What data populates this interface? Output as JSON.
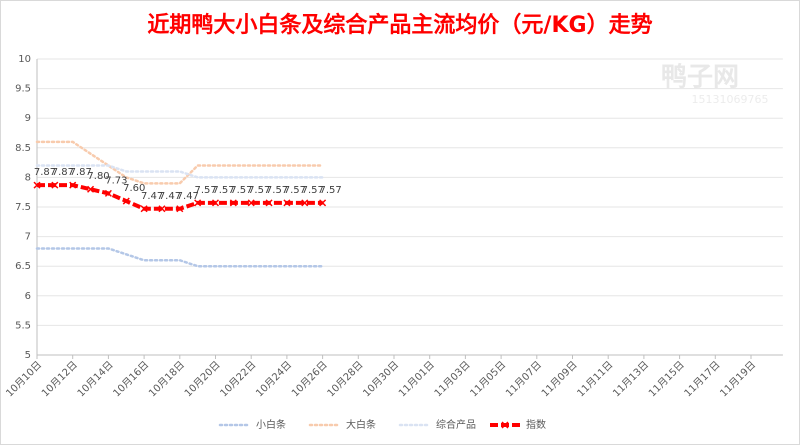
{
  "chart_data": {
    "type": "line",
    "title": "近期鸭大小白条及综合产品主流均价（元/KG）走势",
    "watermark": [
      "鸭子网",
      "15131069765"
    ],
    "categories": [
      "10月10日",
      null,
      "10月12日",
      null,
      "10月14日",
      null,
      "10月16日",
      null,
      "10月18日",
      null,
      "10月20日",
      null,
      "10月22日",
      null,
      "10月24日",
      null,
      "10月26日",
      null,
      "10月28日",
      null,
      "10月30日",
      null,
      "11月01日",
      null,
      "11月03日",
      null,
      "11月05日",
      null,
      "11月07日",
      null,
      "11月09日",
      null,
      "11月11日",
      null,
      "11月13日",
      null,
      "11月15日",
      null,
      "11月17日",
      null,
      "11月19日",
      null
    ],
    "ylim": [
      5,
      10
    ],
    "yticks": [
      5,
      5.5,
      6,
      6.5,
      7,
      7.5,
      8,
      8.5,
      9,
      9.5,
      10
    ],
    "grid": true,
    "legend": "bottom",
    "series": [
      {
        "name": "小白条",
        "color": "#b4c7e7",
        "dash": "dotted",
        "values": [
          6.8,
          6.8,
          6.8,
          6.8,
          6.8,
          6.7,
          6.6,
          6.6,
          6.6,
          6.5,
          6.5,
          6.5,
          6.5,
          6.5,
          6.5,
          6.5,
          6.5,
          null,
          null,
          null,
          null,
          null,
          null,
          null,
          null,
          null,
          null,
          null,
          null,
          null,
          null,
          null,
          null,
          null,
          null,
          null,
          null,
          null,
          null,
          null,
          null,
          null
        ]
      },
      {
        "name": "大白条",
        "color": "#f8cbad",
        "dash": "dotted",
        "values": [
          8.6,
          8.6,
          8.6,
          8.4,
          8.2,
          8.0,
          7.9,
          7.9,
          7.9,
          8.2,
          8.2,
          8.2,
          8.2,
          8.2,
          8.2,
          8.2,
          8.2,
          null,
          null,
          null,
          null,
          null,
          null,
          null,
          null,
          null,
          null,
          null,
          null,
          null,
          null,
          null,
          null,
          null,
          null,
          null,
          null,
          null,
          null,
          null,
          null,
          null
        ]
      },
      {
        "name": "综合产品",
        "color": "#dae3f3",
        "dash": "dotted",
        "values": [
          8.2,
          8.2,
          8.2,
          8.2,
          8.2,
          8.1,
          8.1,
          8.1,
          8.1,
          8.0,
          8.0,
          8.0,
          8.0,
          8.0,
          8.0,
          8.0,
          8.0,
          null,
          null,
          null,
          null,
          null,
          null,
          null,
          null,
          null,
          null,
          null,
          null,
          null,
          null,
          null,
          null,
          null,
          null,
          null,
          null,
          null,
          null,
          null,
          null,
          null
        ]
      },
      {
        "name": "指数",
        "color": "#ff0000",
        "dash": "dashed",
        "markers": true,
        "values": [
          7.87,
          7.87,
          7.87,
          7.8,
          7.73,
          7.6,
          7.47,
          7.47,
          7.47,
          7.57,
          7.57,
          7.57,
          7.57,
          7.57,
          7.57,
          7.57,
          7.57,
          null,
          null,
          null,
          null,
          null,
          null,
          null,
          null,
          null,
          null,
          null,
          null,
          null,
          null,
          null,
          null,
          null,
          null,
          null,
          null,
          null,
          null,
          null,
          null,
          null
        ],
        "value_labels": [
          "7.87",
          "7.87",
          "7.87",
          "7.80",
          "7.73",
          "7.60",
          "7.47",
          "7.47",
          "7.47",
          "7.57",
          "7.57",
          "7.57",
          "7.57",
          "7.57",
          "7.57",
          "7.57",
          "7.57",
          null,
          null,
          null,
          null,
          null,
          null,
          null,
          null,
          null,
          null,
          null,
          null,
          null,
          null,
          null,
          null,
          null,
          null,
          null,
          null,
          null,
          null,
          null,
          null,
          null
        ]
      }
    ]
  }
}
